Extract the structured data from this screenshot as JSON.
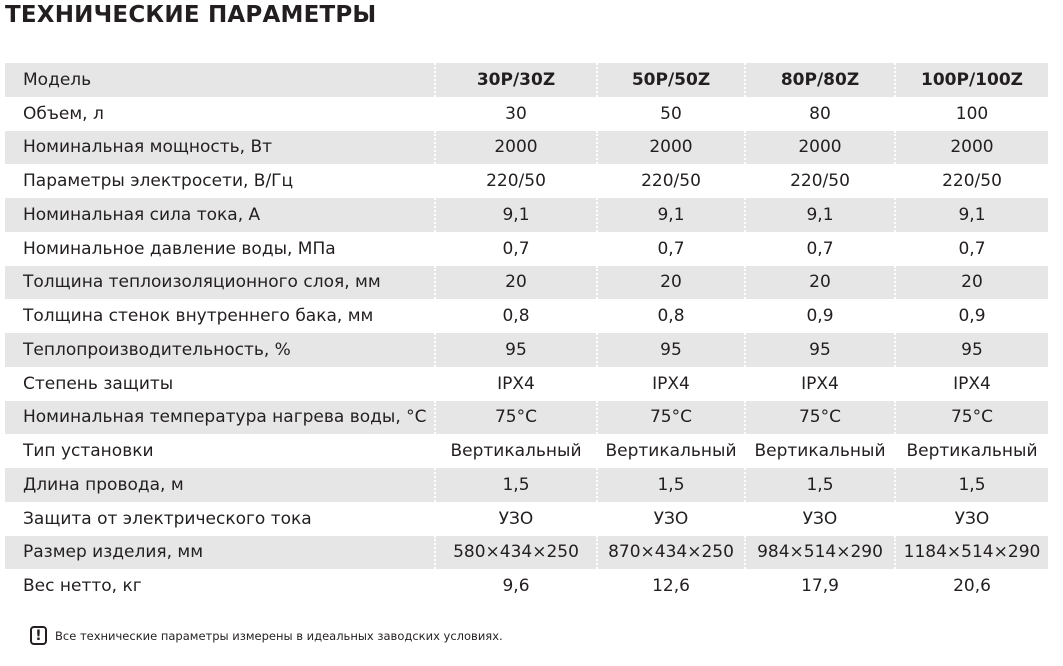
{
  "header": {
    "title": "ТЕХНИЧЕСКИЕ ПАРАМЕТРЫ"
  },
  "table": {
    "columns": [
      "Модель",
      "30P/30Z",
      "50P/50Z",
      "80P/80Z",
      "100P/100Z"
    ],
    "rows": [
      [
        "Объем, л",
        "30",
        "50",
        "80",
        "100"
      ],
      [
        "Номинальная мощность, Вт",
        "2000",
        "2000",
        "2000",
        "2000"
      ],
      [
        "Параметры электросети, В/Гц",
        "220/50",
        "220/50",
        "220/50",
        "220/50"
      ],
      [
        "Номинальная сила тока, А",
        "9,1",
        "9,1",
        "9,1",
        "9,1"
      ],
      [
        "Номинальное давление воды, МПа",
        "0,7",
        "0,7",
        "0,7",
        "0,7"
      ],
      [
        "Толщина теплоизоляционного слоя, мм",
        "20",
        "20",
        "20",
        "20"
      ],
      [
        "Толщина стенок внутреннего бака, мм",
        "0,8",
        "0,8",
        "0,9",
        "0,9"
      ],
      [
        "Теплопроизводительность, %",
        "95",
        "95",
        "95",
        "95"
      ],
      [
        "Степень защиты",
        "IPX4",
        "IPX4",
        "IPX4",
        "IPX4"
      ],
      [
        "Номинальная температура нагрева воды, °С",
        "75°С",
        "75°С",
        "75°С",
        "75°С"
      ],
      [
        "Тип установки",
        "Вертикальный",
        "Вертикальный",
        "Вертикальный",
        "Вертикальный"
      ],
      [
        "Длина провода, м",
        "1,5",
        "1,5",
        "1,5",
        "1,5"
      ],
      [
        "Защита от электрического тока",
        "УЗО",
        "УЗО",
        "УЗО",
        "УЗО"
      ],
      [
        "Размер изделия, мм",
        "580×434×250",
        "870×434×250",
        "984×514×290",
        "1184×514×290"
      ],
      [
        "Вес нетто, кг",
        "9,6",
        "12,6",
        "17,9",
        "20,6"
      ]
    ]
  },
  "note": "Все технические параметры измерены в идеальных заводских условиях."
}
